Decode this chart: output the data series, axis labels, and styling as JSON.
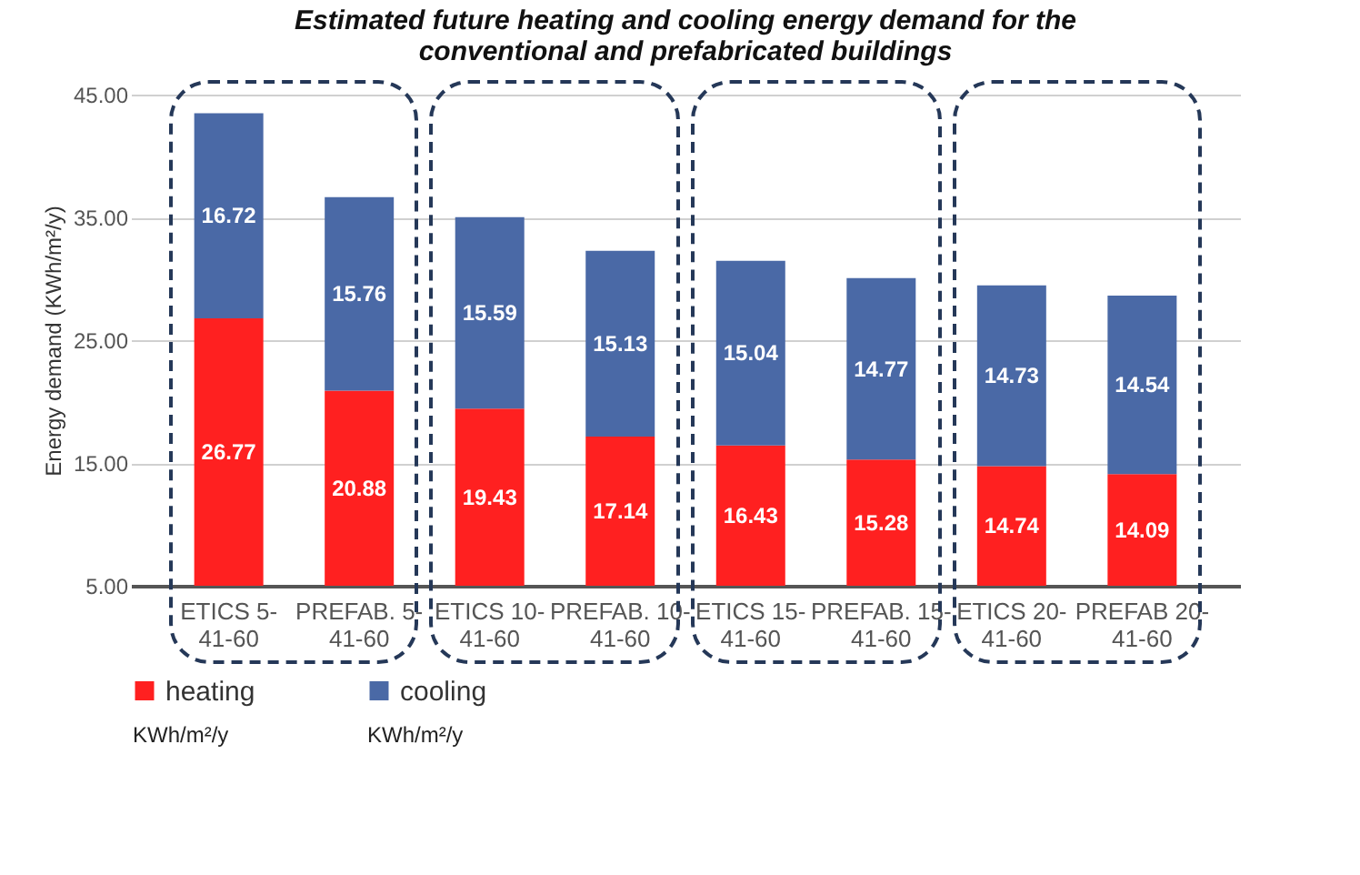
{
  "chart_data": {
    "type": "bar",
    "title": [
      "Estimated future heating and cooling energy demand for the",
      "conventional and prefabricated buildings"
    ],
    "ylabel": "Energy demand (KWh/m²/y)",
    "categories": [
      "ETICS 5-41-60",
      "PREFAB. 5-41-60",
      "ETICS 10-41-60",
      "PREFAB. 10-41-60",
      "ETICS 15-41-60",
      "PREFAB. 15-41-60",
      "ETICS 20-41-60",
      "PREFAB 20-41-60"
    ],
    "series": [
      {
        "name": "heating",
        "color": "#ff2020",
        "values": [
          26.77,
          20.88,
          19.43,
          17.14,
          16.43,
          15.28,
          14.74,
          14.09
        ]
      },
      {
        "name": "cooling",
        "color": "#4a69a6",
        "values": [
          16.72,
          15.76,
          15.59,
          15.13,
          15.04,
          14.77,
          14.73,
          14.54
        ]
      }
    ],
    "stacked": true,
    "data_labels": true,
    "grid": "y",
    "legend": "bottom",
    "ylim": [
      5,
      45
    ],
    "yticks": [
      {
        "value": 5,
        "label": "5.00"
      },
      {
        "value": 15,
        "label": "15.00"
      },
      {
        "value": 25,
        "label": "25.00"
      },
      {
        "value": 35,
        "label": "35.00"
      },
      {
        "value": 45,
        "label": "45.00"
      }
    ],
    "annotations": [
      "KWh/m²/y",
      "KWh/m²/y"
    ]
  }
}
